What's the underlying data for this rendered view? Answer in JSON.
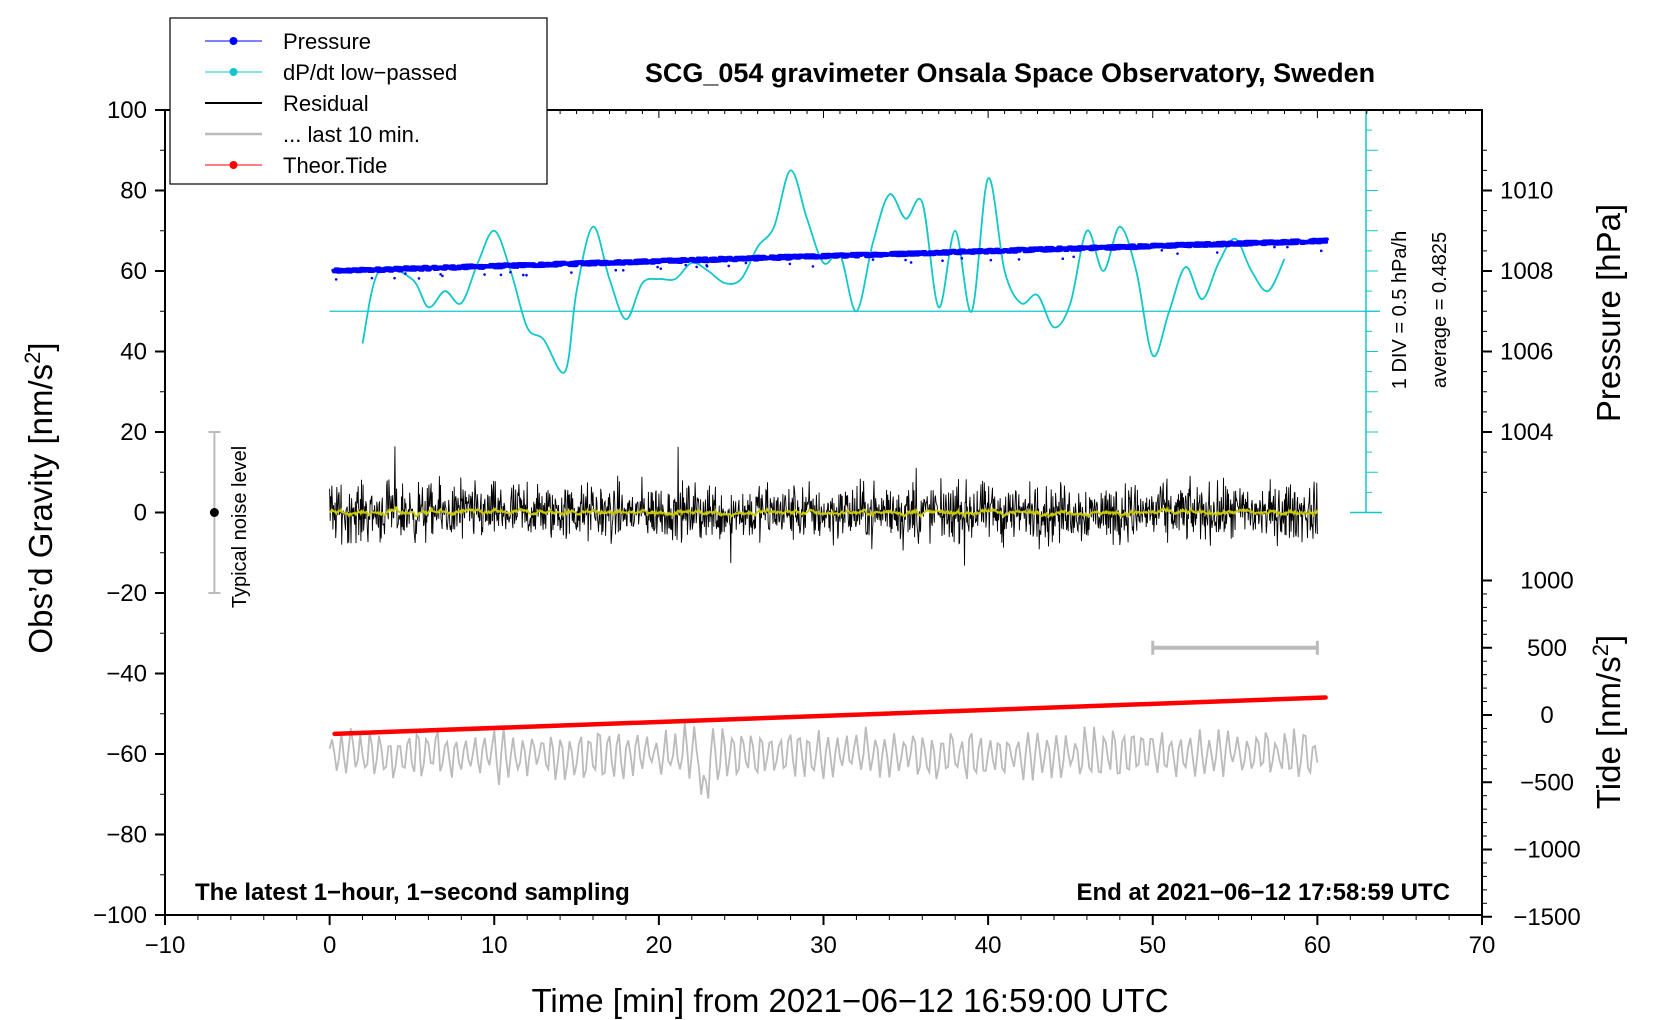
{
  "chart_data": {
    "type": "line",
    "title": "SCG_054 gravimeter Onsala Space Observatory, Sweden",
    "xlabel": "Time [min] from 2021−06−12 16:59:00 UTC",
    "xlim": [
      -10,
      70
    ],
    "x_ticks": [
      "−10",
      "0",
      "10",
      "20",
      "30",
      "40",
      "50",
      "60",
      "70"
    ],
    "left_axis": {
      "label_main": "Obs’d Gravity [nm/s",
      "label_sup": "2",
      "label_end": "]",
      "ylim": [
        -100,
        100
      ],
      "ticks": [
        "−100",
        "−80",
        "−60",
        "−40",
        "−20",
        "0",
        "20",
        "40",
        "60",
        "80",
        "100"
      ]
    },
    "pressure_axis": {
      "label": "Pressure [hPa]",
      "ylim": [
        1002,
        1012
      ],
      "ticks": [
        "1004",
        "1006",
        "1008",
        "1010"
      ]
    },
    "tide_axis": {
      "label_main": "Tide [nm/s",
      "label_sup": "2",
      "label_end": "]",
      "ylim": [
        -1500,
        1000
      ],
      "ticks": [
        "−1500",
        "−1000",
        "−500",
        "0",
        "500",
        "1000"
      ]
    },
    "legend": [
      {
        "label": "Pressure",
        "color": "#0000ff",
        "marker": true
      },
      {
        "label": "dP/dt low−passed",
        "color": "#10c8c8",
        "marker": true
      },
      {
        "label": "Residual",
        "color": "#000000",
        "marker": false
      },
      {
        "label": "... last 10 min.",
        "color": "#bbbbbb",
        "marker": false
      },
      {
        "label": "Theor.Tide",
        "color": "#ff0000",
        "marker": true
      }
    ],
    "series": [
      {
        "name": "Pressure",
        "color": "#0000ff",
        "axis": "pressure",
        "x_range": [
          0.3,
          60.5
        ],
        "start": 1008.0,
        "end": 1008.75
      },
      {
        "name": "dP/dt low-passed",
        "color": "#10c8c8",
        "axis": "dpdt",
        "baseline": 50,
        "x": [
          2,
          3,
          5,
          6,
          7,
          8,
          9,
          10,
          11,
          12,
          13,
          14.3,
          15,
          16,
          17,
          18,
          19,
          20,
          21,
          22,
          23,
          24,
          25,
          26,
          27,
          28,
          29,
          30,
          31,
          32,
          33,
          34,
          35,
          36,
          37,
          38,
          39,
          40,
          41,
          42,
          43,
          44,
          45,
          46,
          47,
          48,
          49,
          50,
          51,
          52,
          53,
          54,
          55,
          56,
          57,
          58
        ],
        "y": [
          42,
          60,
          58,
          51,
          55,
          52,
          62,
          70,
          60,
          46,
          43,
          35,
          55,
          71,
          58,
          48,
          57,
          58,
          58,
          62,
          60,
          57,
          58,
          66,
          71,
          85,
          73,
          62,
          64,
          50,
          67,
          79,
          73,
          77,
          51,
          70,
          50,
          83,
          60,
          52,
          54,
          46,
          52,
          70,
          60,
          71,
          60,
          39,
          50,
          61,
          53,
          62,
          68,
          60,
          55,
          63
        ]
      },
      {
        "name": "Residual",
        "color": "#000000",
        "axis": "gravity",
        "x_range": [
          0,
          60
        ],
        "amplitude": 7
      },
      {
        "name": "... last 10 min.",
        "color": "#bbbbbb",
        "axis": "gravity",
        "x_range": [
          0,
          60
        ],
        "center": -60
      },
      {
        "name": "Theor.Tide",
        "color": "#ff0000",
        "axis": "tide",
        "x_range": [
          0.3,
          60.5
        ],
        "start": -140,
        "end": 130
      }
    ],
    "dpdt_scale": {
      "label": "1 DIV = 0.5 hPa/h",
      "average": "average = 0.4825"
    },
    "noise_level": {
      "label": "Typical noise level",
      "x": -7,
      "range": [
        -20,
        20
      ]
    },
    "ten_min_bar": {
      "x_range": [
        50,
        60
      ],
      "tide_value": 500
    },
    "annotations": {
      "left": "The latest 1−hour, 1−second sampling",
      "right": "End at 2021−06−12 17:58:59 UTC"
    }
  }
}
